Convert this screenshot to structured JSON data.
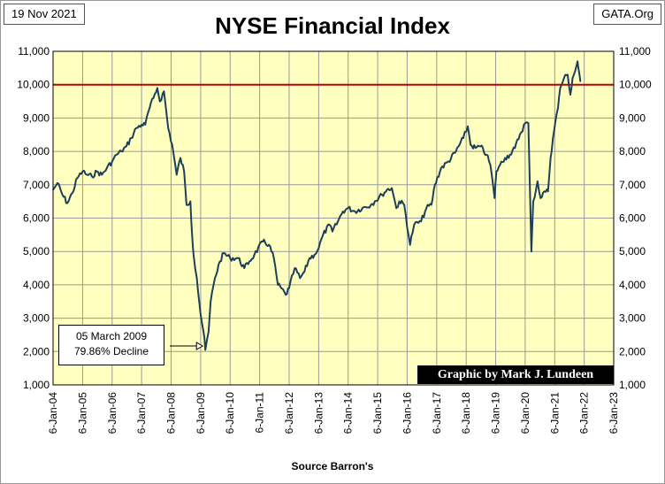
{
  "header": {
    "date": "19 Nov 2021",
    "title": "NYSE Financial Index",
    "site": "GATA.Org"
  },
  "footer": {
    "source": "Source Barron's"
  },
  "annotation": {
    "line1": "05 March 2009",
    "line2": "79.86%   Decline"
  },
  "credit": "Graphic by Mark J. Lundeen",
  "colors": {
    "plot_bg": "#ffffc0",
    "series": "#1c3f5a",
    "reference_line": "#c00000",
    "grid": "#999999"
  },
  "chart_data": {
    "type": "line",
    "title": "NYSE Financial Index",
    "xlabel": "",
    "ylabel": "",
    "ylim": [
      1000,
      11000
    ],
    "xlim": [
      "2004-01-06",
      "2023-01-06"
    ],
    "grid": true,
    "y_ticks": [
      "1,000",
      "2,000",
      "3,000",
      "4,000",
      "5,000",
      "6,000",
      "7,000",
      "8,000",
      "9,000",
      "10,000",
      "11,000"
    ],
    "x_ticks": [
      "6-Jan-04",
      "6-Jan-05",
      "6-Jan-06",
      "6-Jan-07",
      "6-Jan-08",
      "6-Jan-09",
      "6-Jan-10",
      "6-Jan-11",
      "6-Jan-12",
      "6-Jan-13",
      "6-Jan-14",
      "6-Jan-15",
      "6-Jan-16",
      "6-Jan-17",
      "6-Jan-18",
      "6-Jan-19",
      "6-Jan-20",
      "6-Jan-21",
      "6-Jan-22",
      "6-Jan-23"
    ],
    "reference_line": 10000,
    "series": [
      {
        "x": [
          "2004-01-06",
          "2004-03-01",
          "2004-05-01",
          "2004-07-01",
          "2004-09-01",
          "2004-11-01",
          "2005-01-06",
          "2005-03-01",
          "2005-05-01",
          "2005-07-01",
          "2005-09-01",
          "2005-11-01",
          "2006-01-06",
          "2006-03-01",
          "2006-05-01",
          "2006-07-01",
          "2006-09-01",
          "2006-11-01",
          "2007-01-06",
          "2007-02-20",
          "2007-04-01",
          "2007-06-01",
          "2007-07-20",
          "2007-08-20",
          "2007-10-10",
          "2007-12-01",
          "2008-01-20",
          "2008-03-15",
          "2008-05-01",
          "2008-06-15",
          "2008-07-15",
          "2008-09-01",
          "2008-09-20",
          "2008-10-10",
          "2008-11-20",
          "2009-01-06",
          "2009-02-10",
          "2009-03-05",
          "2009-04-15",
          "2009-05-10",
          "2009-07-01",
          "2009-09-01",
          "2009-10-20",
          "2010-01-06",
          "2010-04-15",
          "2010-07-01",
          "2010-09-01",
          "2010-11-01",
          "2011-02-15",
          "2011-05-01",
          "2011-07-01",
          "2011-08-20",
          "2011-10-01",
          "2011-11-25",
          "2012-01-06",
          "2012-03-15",
          "2012-05-20",
          "2012-07-15",
          "2012-09-15",
          "2012-11-15",
          "2013-01-06",
          "2013-03-01",
          "2013-05-20",
          "2013-06-25",
          "2013-09-01",
          "2013-11-01",
          "2014-01-06",
          "2014-04-01",
          "2014-07-01",
          "2014-10-15",
          "2014-12-01",
          "2015-03-01",
          "2015-05-01",
          "2015-07-01",
          "2015-08-25",
          "2015-10-01",
          "2015-12-01",
          "2016-02-11",
          "2016-04-01",
          "2016-06-27",
          "2016-09-01",
          "2016-11-01",
          "2016-12-15",
          "2017-03-01",
          "2017-06-01",
          "2017-09-01",
          "2017-12-01",
          "2018-01-26",
          "2018-03-01",
          "2018-05-01",
          "2018-07-01",
          "2018-09-15",
          "2018-11-01",
          "2018-12-24",
          "2019-01-15",
          "2019-03-01",
          "2019-05-01",
          "2019-07-01",
          "2019-09-01",
          "2019-11-01",
          "2020-01-06",
          "2020-02-15",
          "2020-03-23",
          "2020-04-15",
          "2020-06-08",
          "2020-07-15",
          "2020-09-01",
          "2020-10-15",
          "2020-11-15",
          "2020-12-15",
          "2021-01-15",
          "2021-02-15",
          "2021-03-15",
          "2021-05-01",
          "2021-06-15",
          "2021-07-19",
          "2021-08-15",
          "2021-09-15",
          "2021-10-15",
          "2021-11-05",
          "2021-11-19"
        ],
        "values": [
          6850,
          7050,
          6700,
          6450,
          6750,
          7200,
          7400,
          7300,
          7250,
          7400,
          7300,
          7500,
          7700,
          7900,
          8000,
          8150,
          8400,
          8700,
          8800,
          8800,
          9200,
          9600,
          9900,
          9500,
          9800,
          8700,
          8200,
          7300,
          7800,
          7400,
          6400,
          6500,
          5600,
          4900,
          4200,
          3100,
          2600,
          2050,
          2600,
          3500,
          4200,
          4700,
          4950,
          4800,
          4800,
          4500,
          4700,
          4900,
          5300,
          5200,
          4800,
          4000,
          3900,
          3700,
          3900,
          4500,
          4200,
          4400,
          4800,
          4900,
          5100,
          5500,
          5800,
          5600,
          5900,
          6200,
          6300,
          6200,
          6300,
          6400,
          6500,
          6700,
          6850,
          6900,
          6300,
          6500,
          6400,
          5200,
          5800,
          5900,
          6300,
          6400,
          7000,
          7500,
          7700,
          8000,
          8400,
          8750,
          8200,
          8100,
          8150,
          7900,
          7600,
          6600,
          7400,
          7600,
          7800,
          7900,
          8100,
          8500,
          8850,
          8850,
          5000,
          6500,
          7100,
          6600,
          6800,
          6800,
          7800,
          8400,
          8900,
          9300,
          9900,
          10200,
          10300,
          9700,
          10200,
          10400,
          10700,
          10350,
          10100
        ]
      }
    ]
  }
}
